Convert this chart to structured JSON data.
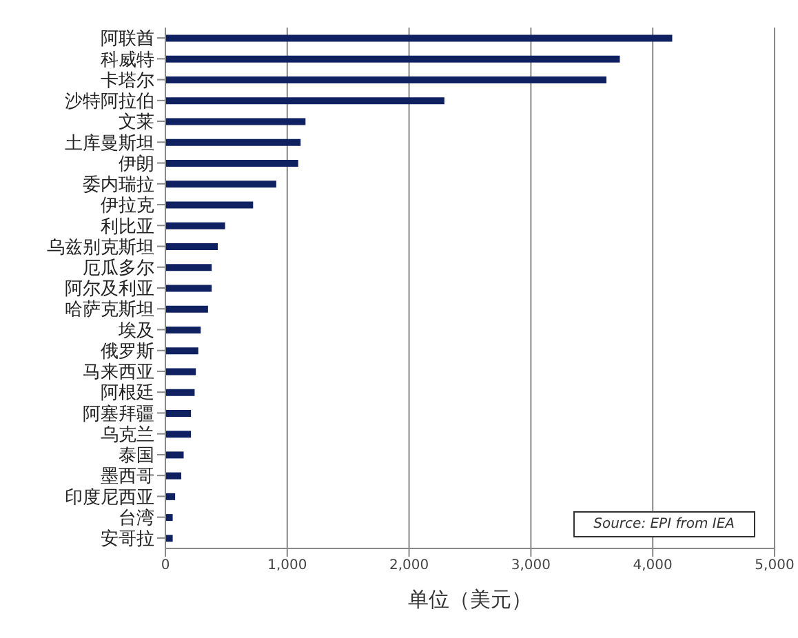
{
  "chart_data": {
    "type": "bar",
    "orientation": "horizontal",
    "xlabel": "单位（美元）",
    "categories": [
      "阿联酋",
      "科威特",
      "卡塔尔",
      "沙特阿拉伯",
      "文莱",
      "土库曼斯坦",
      "伊朗",
      "委内瑞拉",
      "伊拉克",
      "利比亚",
      "乌兹别克斯坦",
      "厄瓜多尔",
      "阿尔及利亚",
      "哈萨克斯坦",
      "埃及",
      "俄罗斯",
      "马来西亚",
      "阿根廷",
      "阿塞拜疆",
      "乌克兰",
      "泰国",
      "墨西哥",
      "印度尼西亚",
      "台湾",
      "安哥拉"
    ],
    "values": [
      4160,
      3730,
      3620,
      2290,
      1150,
      1110,
      1090,
      910,
      720,
      490,
      430,
      380,
      380,
      350,
      290,
      270,
      250,
      240,
      210,
      210,
      150,
      130,
      80,
      60,
      60
    ],
    "color": "#0f2160",
    "xlim": [
      0,
      5000
    ],
    "xticks": [
      {
        "value": 0,
        "label": "0"
      },
      {
        "value": 1000,
        "label": "1,000"
      },
      {
        "value": 2000,
        "label": "2,000"
      },
      {
        "value": 3000,
        "label": "3,000"
      },
      {
        "value": 4000,
        "label": "4,000"
      },
      {
        "value": 5000,
        "label": "5,000"
      }
    ],
    "grid": "x",
    "annotations": [
      "Source: EPI from IEA"
    ]
  }
}
